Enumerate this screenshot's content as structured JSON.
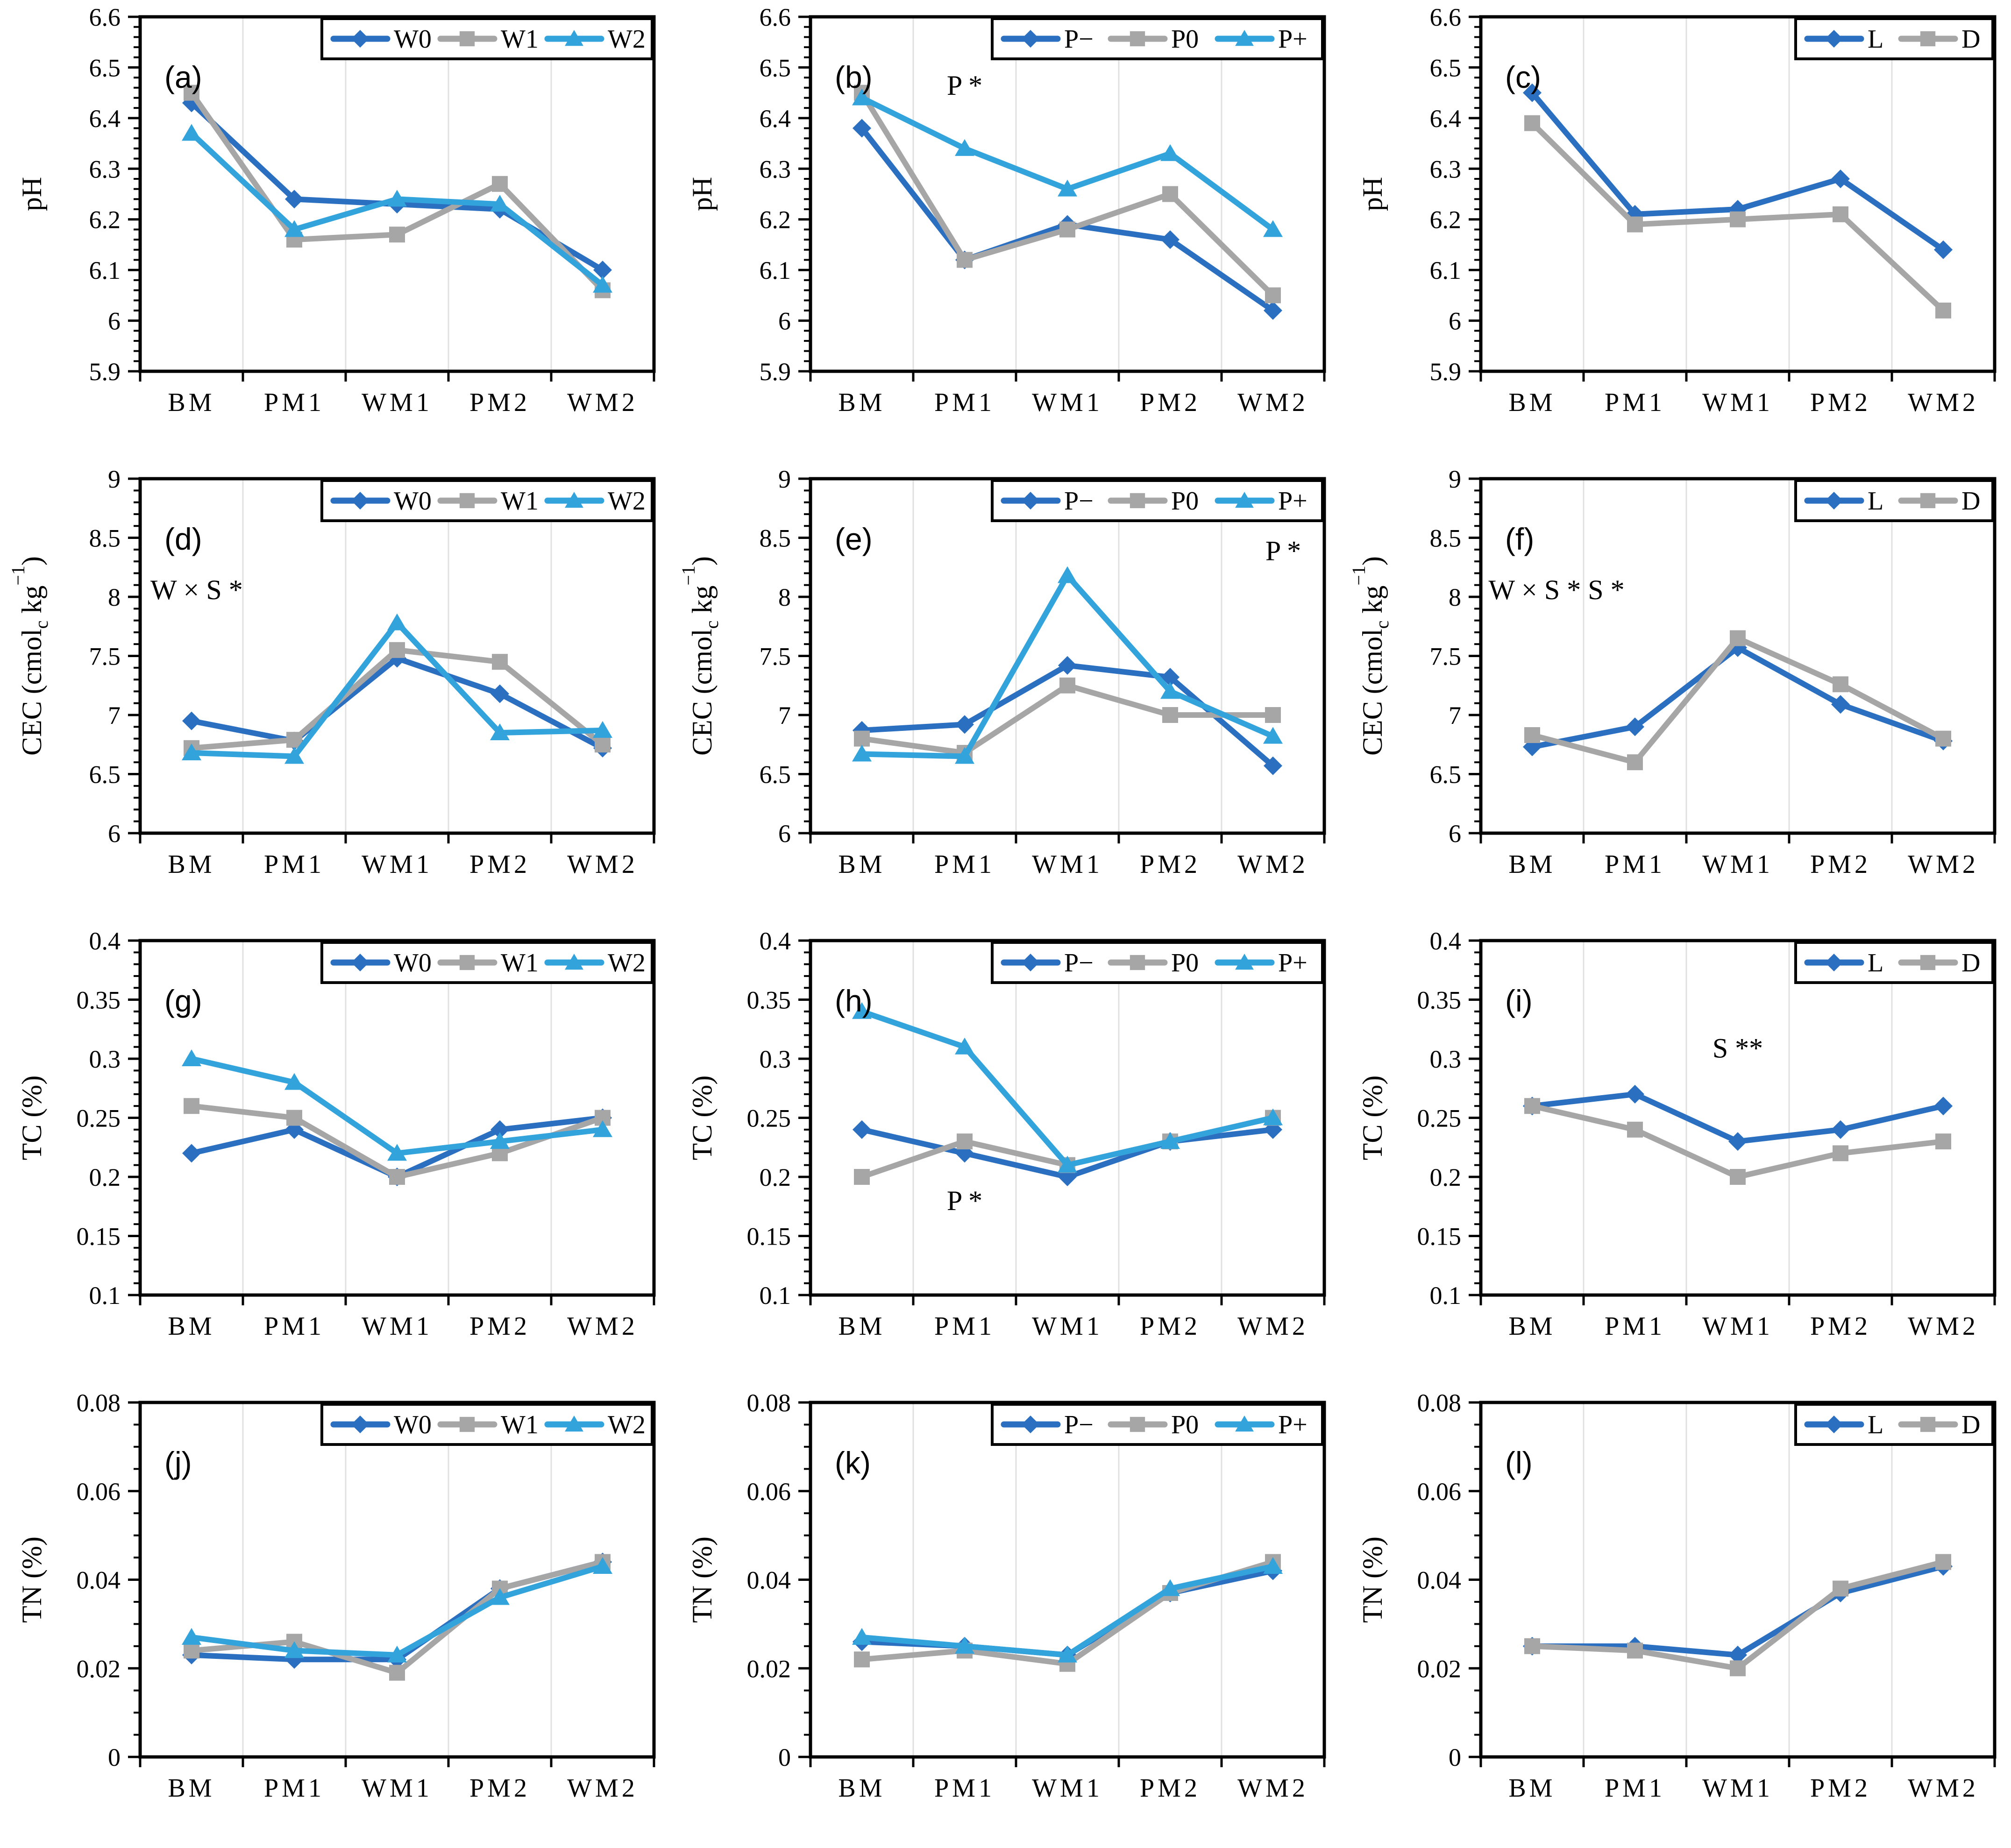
{
  "colors": {
    "series_blue": "#2b6fc1",
    "series_gray": "#a6a6a6",
    "series_lightblue": "#33a3dc",
    "gridline": "#e0e0e0",
    "axis": "#000000",
    "legend_bg": "#ffffff"
  },
  "categories": [
    "BM",
    "PM1",
    "WM1",
    "PM2",
    "WM2"
  ],
  "rows": [
    {
      "ylabel": [
        {
          "t": "pH"
        }
      ],
      "ylim": [
        5.9,
        6.6
      ],
      "minor_step": 0.02,
      "yticks": [
        {
          "v": 5.9,
          "l": "5.9"
        },
        {
          "v": 6.0,
          "l": "6"
        },
        {
          "v": 6.1,
          "l": "6.1"
        },
        {
          "v": 6.2,
          "l": "6.2"
        },
        {
          "v": 6.3,
          "l": "6.3"
        },
        {
          "v": 6.4,
          "l": "6.4"
        },
        {
          "v": 6.5,
          "l": "6.5"
        },
        {
          "v": 6.6,
          "l": "6.6"
        }
      ]
    },
    {
      "ylabel": [
        {
          "t": "CEC (cmol"
        },
        {
          "t": "c",
          "sub": true
        },
        {
          "t": " kg"
        },
        {
          "t": "−1",
          "sup": true
        },
        {
          "t": ")"
        }
      ],
      "ylim": [
        6,
        9
      ],
      "minor_step": 0.1,
      "yticks": [
        {
          "v": 6,
          "l": "6"
        },
        {
          "v": 6.5,
          "l": "6.5"
        },
        {
          "v": 7,
          "l": "7"
        },
        {
          "v": 7.5,
          "l": "7.5"
        },
        {
          "v": 8,
          "l": "8"
        },
        {
          "v": 8.5,
          "l": "8.5"
        },
        {
          "v": 9,
          "l": "9"
        }
      ]
    },
    {
      "ylabel": [
        {
          "t": "TC (%)"
        }
      ],
      "ylim": [
        0.1,
        0.4
      ],
      "minor_step": 0.01,
      "yticks": [
        {
          "v": 0.1,
          "l": "0.1"
        },
        {
          "v": 0.15,
          "l": "0.15"
        },
        {
          "v": 0.2,
          "l": "0.2"
        },
        {
          "v": 0.25,
          "l": "0.25"
        },
        {
          "v": 0.3,
          "l": "0.3"
        },
        {
          "v": 0.35,
          "l": "0.35"
        },
        {
          "v": 0.4,
          "l": "0.4"
        }
      ]
    },
    {
      "ylabel": [
        {
          "t": "TN (%)"
        }
      ],
      "ylim": [
        0,
        0.08
      ],
      "minor_step": 0.005,
      "yticks": [
        {
          "v": 0,
          "l": "0"
        },
        {
          "v": 0.02,
          "l": "0.02"
        },
        {
          "v": 0.04,
          "l": "0.04"
        },
        {
          "v": 0.06,
          "l": "0.06"
        },
        {
          "v": 0.08,
          "l": "0.08"
        }
      ]
    }
  ],
  "chart_data": [
    {
      "id": "a",
      "type": "line",
      "row": 0,
      "col": 0,
      "letter": "(a)",
      "annotations": [],
      "series": [
        {
          "name": "W0",
          "color": "series_blue",
          "marker": "diamond",
          "values": [
            6.43,
            6.24,
            6.23,
            6.22,
            6.1
          ]
        },
        {
          "name": "W1",
          "color": "series_gray",
          "marker": "square",
          "values": [
            6.45,
            6.16,
            6.17,
            6.27,
            6.06
          ]
        },
        {
          "name": "W2",
          "color": "series_lightblue",
          "marker": "triangle",
          "values": [
            6.37,
            6.18,
            6.24,
            6.23,
            6.07
          ]
        }
      ]
    },
    {
      "id": "b",
      "type": "line",
      "row": 0,
      "col": 1,
      "letter": "(b)",
      "annotations": [
        {
          "text": "P *",
          "fx": 0.3,
          "fy": 0.22,
          "anchor": "middle"
        }
      ],
      "series": [
        {
          "name": "P−",
          "color": "series_blue",
          "marker": "diamond",
          "values": [
            6.38,
            6.12,
            6.19,
            6.16,
            6.02
          ]
        },
        {
          "name": "P0",
          "color": "series_gray",
          "marker": "square",
          "values": [
            6.45,
            6.12,
            6.18,
            6.25,
            6.05
          ]
        },
        {
          "name": "P+",
          "color": "series_lightblue",
          "marker": "triangle",
          "values": [
            6.44,
            6.34,
            6.26,
            6.33,
            6.18
          ]
        }
      ]
    },
    {
      "id": "c",
      "type": "line",
      "row": 0,
      "col": 2,
      "letter": "(c)",
      "annotations": [],
      "series": [
        {
          "name": "L",
          "color": "series_blue",
          "marker": "diamond",
          "values": [
            6.45,
            6.21,
            6.22,
            6.28,
            6.14
          ]
        },
        {
          "name": "D",
          "color": "series_gray",
          "marker": "square",
          "values": [
            6.39,
            6.19,
            6.2,
            6.21,
            6.02
          ]
        }
      ]
    },
    {
      "id": "d",
      "type": "line",
      "row": 1,
      "col": 0,
      "letter": "(d)",
      "annotations": [
        {
          "text": "W × S *",
          "fx": 0.02,
          "fy": 0.34,
          "anchor": "start"
        }
      ],
      "series": [
        {
          "name": "W0",
          "color": "series_blue",
          "marker": "diamond",
          "values": [
            6.95,
            6.78,
            7.48,
            7.18,
            6.72
          ]
        },
        {
          "name": "W1",
          "color": "series_gray",
          "marker": "square",
          "values": [
            6.72,
            6.79,
            7.55,
            7.45,
            6.75
          ]
        },
        {
          "name": "W2",
          "color": "series_lightblue",
          "marker": "triangle",
          "values": [
            6.68,
            6.65,
            7.78,
            6.85,
            6.87
          ]
        }
      ]
    },
    {
      "id": "e",
      "type": "line",
      "row": 1,
      "col": 1,
      "letter": "(e)",
      "annotations": [
        {
          "text": "P *",
          "fx": 0.92,
          "fy": 0.23,
          "anchor": "middle"
        }
      ],
      "series": [
        {
          "name": "P−",
          "color": "series_blue",
          "marker": "diamond",
          "values": [
            6.87,
            6.92,
            7.42,
            7.32,
            6.57
          ]
        },
        {
          "name": "P0",
          "color": "series_gray",
          "marker": "square",
          "values": [
            6.8,
            6.68,
            7.25,
            7.0,
            7.0
          ]
        },
        {
          "name": "P+",
          "color": "series_lightblue",
          "marker": "triangle",
          "values": [
            6.67,
            6.65,
            8.18,
            7.2,
            6.82
          ]
        }
      ]
    },
    {
      "id": "f",
      "type": "line",
      "row": 1,
      "col": 2,
      "letter": "(f)",
      "annotations": [
        {
          "text": "W × S *   S *",
          "fx": 0.015,
          "fy": 0.34,
          "anchor": "start"
        }
      ],
      "series": [
        {
          "name": "L",
          "color": "series_blue",
          "marker": "diamond",
          "values": [
            6.73,
            6.9,
            7.57,
            7.09,
            6.78
          ]
        },
        {
          "name": "D",
          "color": "series_gray",
          "marker": "square",
          "values": [
            6.83,
            6.6,
            7.65,
            7.26,
            6.8
          ]
        }
      ]
    },
    {
      "id": "g",
      "type": "line",
      "row": 2,
      "col": 0,
      "letter": "(g)",
      "annotations": [],
      "series": [
        {
          "name": "W0",
          "color": "series_blue",
          "marker": "diamond",
          "values": [
            0.22,
            0.24,
            0.2,
            0.24,
            0.25
          ]
        },
        {
          "name": "W1",
          "color": "series_gray",
          "marker": "square",
          "values": [
            0.26,
            0.25,
            0.2,
            0.22,
            0.25
          ]
        },
        {
          "name": "W2",
          "color": "series_lightblue",
          "marker": "triangle",
          "values": [
            0.3,
            0.28,
            0.22,
            0.23,
            0.24
          ]
        }
      ]
    },
    {
      "id": "h",
      "type": "line",
      "row": 2,
      "col": 1,
      "letter": "(h)",
      "annotations": [
        {
          "text": "P *",
          "fx": 0.3,
          "fy": 0.76,
          "anchor": "middle"
        }
      ],
      "series": [
        {
          "name": "P−",
          "color": "series_blue",
          "marker": "diamond",
          "values": [
            0.24,
            0.22,
            0.2,
            0.23,
            0.24
          ]
        },
        {
          "name": "P0",
          "color": "series_gray",
          "marker": "square",
          "values": [
            0.2,
            0.23,
            0.21,
            0.23,
            0.25
          ]
        },
        {
          "name": "P+",
          "color": "series_lightblue",
          "marker": "triangle",
          "values": [
            0.34,
            0.31,
            0.21,
            0.23,
            0.25
          ]
        }
      ]
    },
    {
      "id": "i",
      "type": "line",
      "row": 2,
      "col": 2,
      "letter": "(i)",
      "annotations": [
        {
          "text": "S **",
          "fx": 0.5,
          "fy": 0.33,
          "anchor": "middle"
        }
      ],
      "series": [
        {
          "name": "L",
          "color": "series_blue",
          "marker": "diamond",
          "values": [
            0.26,
            0.27,
            0.23,
            0.24,
            0.26
          ]
        },
        {
          "name": "D",
          "color": "series_gray",
          "marker": "square",
          "values": [
            0.26,
            0.24,
            0.2,
            0.22,
            0.23
          ]
        }
      ]
    },
    {
      "id": "j",
      "type": "line",
      "row": 3,
      "col": 0,
      "letter": "(j)",
      "annotations": [],
      "series": [
        {
          "name": "W0",
          "color": "series_blue",
          "marker": "diamond",
          "values": [
            0.023,
            0.022,
            0.022,
            0.038,
            0.044
          ]
        },
        {
          "name": "W1",
          "color": "series_gray",
          "marker": "square",
          "values": [
            0.024,
            0.026,
            0.019,
            0.038,
            0.044
          ]
        },
        {
          "name": "W2",
          "color": "series_lightblue",
          "marker": "triangle",
          "values": [
            0.027,
            0.024,
            0.023,
            0.036,
            0.043
          ]
        }
      ]
    },
    {
      "id": "k",
      "type": "line",
      "row": 3,
      "col": 1,
      "letter": "(k)",
      "annotations": [],
      "series": [
        {
          "name": "P−",
          "color": "series_blue",
          "marker": "diamond",
          "values": [
            0.026,
            0.025,
            0.023,
            0.037,
            0.042
          ]
        },
        {
          "name": "P0",
          "color": "series_gray",
          "marker": "square",
          "values": [
            0.022,
            0.024,
            0.021,
            0.037,
            0.044
          ]
        },
        {
          "name": "P+",
          "color": "series_lightblue",
          "marker": "triangle",
          "values": [
            0.027,
            0.025,
            0.023,
            0.038,
            0.043
          ]
        }
      ]
    },
    {
      "id": "l",
      "type": "line",
      "row": 3,
      "col": 2,
      "letter": "(l)",
      "annotations": [],
      "series": [
        {
          "name": "L",
          "color": "series_blue",
          "marker": "diamond",
          "values": [
            0.025,
            0.025,
            0.023,
            0.037,
            0.043
          ]
        },
        {
          "name": "D",
          "color": "series_gray",
          "marker": "square",
          "values": [
            0.025,
            0.024,
            0.02,
            0.038,
            0.044
          ]
        }
      ]
    }
  ]
}
